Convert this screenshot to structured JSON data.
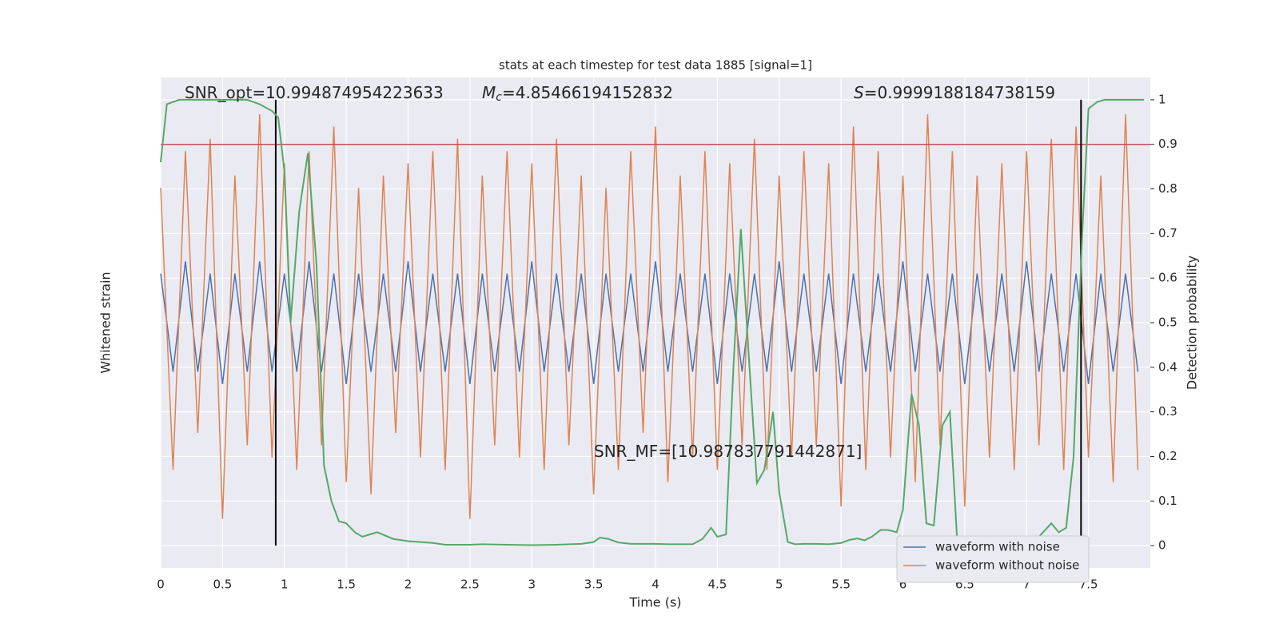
{
  "chart_data": {
    "type": "line",
    "title": "stats at each timestep for test data 1885 [signal=1]",
    "x_label": "Time (s)",
    "y_label": "Whitened strain",
    "y2_label": "Detection probability",
    "xlim": [
      0,
      8
    ],
    "xticks": [
      0.0,
      0.5,
      1.0,
      1.5,
      2.0,
      2.5,
      3.0,
      3.5,
      4.0,
      4.5,
      5.0,
      5.5,
      6.0,
      6.5,
      7.0,
      7.5
    ],
    "ylim": [
      -1,
      1
    ],
    "y2lim": [
      -0.05,
      1.05
    ],
    "y2ticks": [
      0.0,
      0.1,
      0.2,
      0.3,
      0.4,
      0.5,
      0.6,
      0.7,
      0.8,
      0.9,
      1.0
    ],
    "grid": true,
    "legend": "lower right",
    "x": [
      0.0,
      0.1,
      0.2,
      0.3,
      0.4,
      0.5,
      0.6,
      0.7,
      0.8,
      0.9,
      1.0,
      1.1,
      1.2,
      1.3,
      1.4,
      1.5,
      1.6,
      1.7,
      1.8,
      1.9,
      2.0,
      2.1,
      2.2,
      2.3,
      2.4,
      2.5,
      2.6,
      2.7,
      2.8,
      2.9,
      3.0,
      3.1,
      3.2,
      3.3,
      3.4,
      3.5,
      3.6,
      3.7,
      3.8,
      3.9,
      4.0,
      4.1,
      4.2,
      4.3,
      4.4,
      4.5,
      4.6,
      4.7,
      4.8,
      4.9,
      5.0,
      5.1,
      5.2,
      5.3,
      5.4,
      5.5,
      5.6,
      5.7,
      5.8,
      5.9,
      6.0,
      6.1,
      6.2,
      6.3,
      6.4,
      6.5,
      6.6,
      6.7,
      6.8,
      6.9,
      7.0,
      7.1,
      7.2,
      7.3,
      7.4,
      7.5,
      7.6,
      7.7,
      7.8,
      7.9
    ],
    "series": [
      {
        "name": "waveform with noise",
        "color": "#4c72b0",
        "values": [
          0.2,
          -0.2,
          0.25,
          -0.2,
          0.2,
          -0.25,
          0.2,
          -0.2,
          0.25,
          -0.2,
          0.2,
          -0.2,
          0.25,
          -0.2,
          0.2,
          -0.25,
          0.2,
          -0.2,
          0.2,
          -0.2,
          0.25,
          -0.2,
          0.2,
          -0.2,
          0.2,
          -0.25,
          0.2,
          -0.2,
          0.2,
          -0.2,
          0.25,
          -0.2,
          0.2,
          -0.2,
          0.2,
          -0.25,
          0.2,
          -0.2,
          0.2,
          -0.2,
          0.25,
          -0.2,
          0.2,
          -0.2,
          0.2,
          -0.25,
          0.2,
          -0.2,
          0.2,
          -0.2,
          0.25,
          -0.2,
          0.2,
          -0.2,
          0.2,
          -0.25,
          0.2,
          -0.2,
          0.2,
          -0.2,
          0.25,
          -0.2,
          0.2,
          -0.2,
          0.2,
          -0.25,
          0.2,
          -0.2,
          0.2,
          -0.2,
          0.25,
          -0.2,
          0.2,
          -0.2,
          0.2,
          -0.25,
          0.2,
          -0.2,
          0.2,
          -0.2
        ]
      },
      {
        "name": "waveform without noise",
        "color": "#dd8452",
        "values": [
          0.55,
          -0.6,
          0.7,
          -0.45,
          0.75,
          -0.8,
          0.6,
          -0.5,
          0.85,
          -0.55,
          0.65,
          -0.6,
          0.7,
          -0.5,
          0.8,
          -0.65,
          0.55,
          -0.7,
          0.6,
          -0.45,
          0.65,
          -0.55,
          0.7,
          -0.6,
          0.75,
          -0.8,
          0.6,
          -0.5,
          0.7,
          -0.55,
          0.65,
          -0.6,
          0.75,
          -0.5,
          0.6,
          -0.7,
          0.55,
          -0.6,
          0.7,
          -0.45,
          0.8,
          -0.65,
          0.6,
          -0.55,
          0.7,
          -0.6,
          0.65,
          -0.5,
          0.75,
          -0.6,
          0.6,
          -0.55,
          0.7,
          -0.5,
          0.65,
          -0.75,
          0.8,
          -0.6,
          0.7,
          -0.55,
          0.6,
          -0.65,
          0.85,
          -0.5,
          0.7,
          -0.75,
          0.6,
          -0.55,
          0.65,
          -0.6,
          0.7,
          -0.5,
          0.75,
          -0.6,
          0.8,
          -0.55,
          0.6,
          -0.65,
          0.85,
          -0.6
        ]
      },
      {
        "name": "Detection probability",
        "color": "#55a868",
        "axis": "y2",
        "x": [
          0.0,
          0.05,
          0.15,
          0.3,
          0.5,
          0.7,
          0.8,
          0.9,
          0.95,
          1.0,
          1.05,
          1.12,
          1.19,
          1.26,
          1.32,
          1.38,
          1.44,
          1.5,
          1.57,
          1.63,
          1.69,
          1.75,
          1.82,
          1.88,
          2.0,
          2.2,
          2.3,
          2.5,
          2.6,
          2.8,
          3.0,
          3.2,
          3.4,
          3.5,
          3.55,
          3.62,
          3.7,
          3.8,
          4.0,
          4.1,
          4.3,
          4.38,
          4.45,
          4.5,
          4.57,
          4.63,
          4.69,
          4.76,
          4.82,
          4.88,
          4.95,
          5.0,
          5.07,
          5.13,
          5.2,
          5.3,
          5.4,
          5.5,
          5.57,
          5.63,
          5.69,
          5.75,
          5.82,
          5.88,
          5.95,
          6.0,
          6.07,
          6.13,
          6.19,
          6.25,
          6.32,
          6.38,
          6.44,
          6.5,
          6.7,
          6.9,
          7.0,
          7.1,
          7.2,
          7.26,
          7.32,
          7.38,
          7.45,
          7.5,
          7.57,
          7.63,
          7.75,
          7.95
        ],
        "values": [
          0.86,
          0.99,
          1.0,
          1.0,
          1.0,
          1.0,
          0.99,
          0.975,
          0.96,
          0.84,
          0.5,
          0.75,
          0.88,
          0.63,
          0.18,
          0.1,
          0.055,
          0.05,
          0.03,
          0.02,
          0.025,
          0.03,
          0.022,
          0.015,
          0.01,
          0.006,
          0.002,
          0.002,
          0.003,
          0.002,
          0.001,
          0.002,
          0.004,
          0.008,
          0.018,
          0.015,
          0.007,
          0.004,
          0.004,
          0.003,
          0.003,
          0.015,
          0.04,
          0.02,
          0.025,
          0.4,
          0.71,
          0.4,
          0.14,
          0.17,
          0.3,
          0.12,
          0.008,
          0.003,
          0.004,
          0.004,
          0.003,
          0.006,
          0.013,
          0.016,
          0.012,
          0.02,
          0.035,
          0.035,
          0.03,
          0.08,
          0.34,
          0.27,
          0.05,
          0.045,
          0.27,
          0.3,
          0.005,
          0.002,
          0.001,
          0.002,
          0.005,
          0.02,
          0.05,
          0.03,
          0.04,
          0.2,
          0.7,
          0.98,
          0.995,
          1.0,
          1.0,
          1.0
        ]
      }
    ],
    "threshold": {
      "value": 0.9,
      "color": "#c44e52"
    },
    "vlines": [
      0.93,
      7.44
    ],
    "annotations": [
      {
        "text": "SNR_opt=10.994874954223633"
      },
      {
        "symbol": "M",
        "subscript": "c",
        "text": "=4.85466194152832"
      },
      {
        "symbol": "S",
        "text": "=0.9999188184738159"
      },
      {
        "text": "SNR_MF=[10.987837791442871]"
      }
    ]
  }
}
